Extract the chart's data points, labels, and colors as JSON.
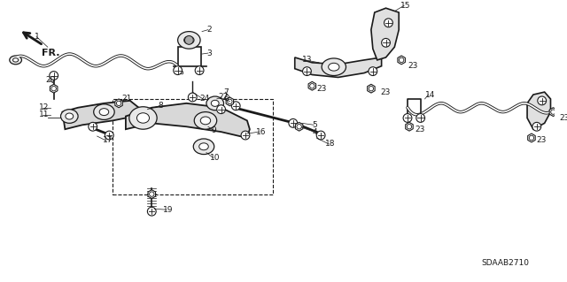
{
  "bg_color": "#ffffff",
  "line_color": "#1a1a1a",
  "fig_width": 6.4,
  "fig_height": 3.19,
  "dpi": 100,
  "diagram_code": "SDAAB2710"
}
